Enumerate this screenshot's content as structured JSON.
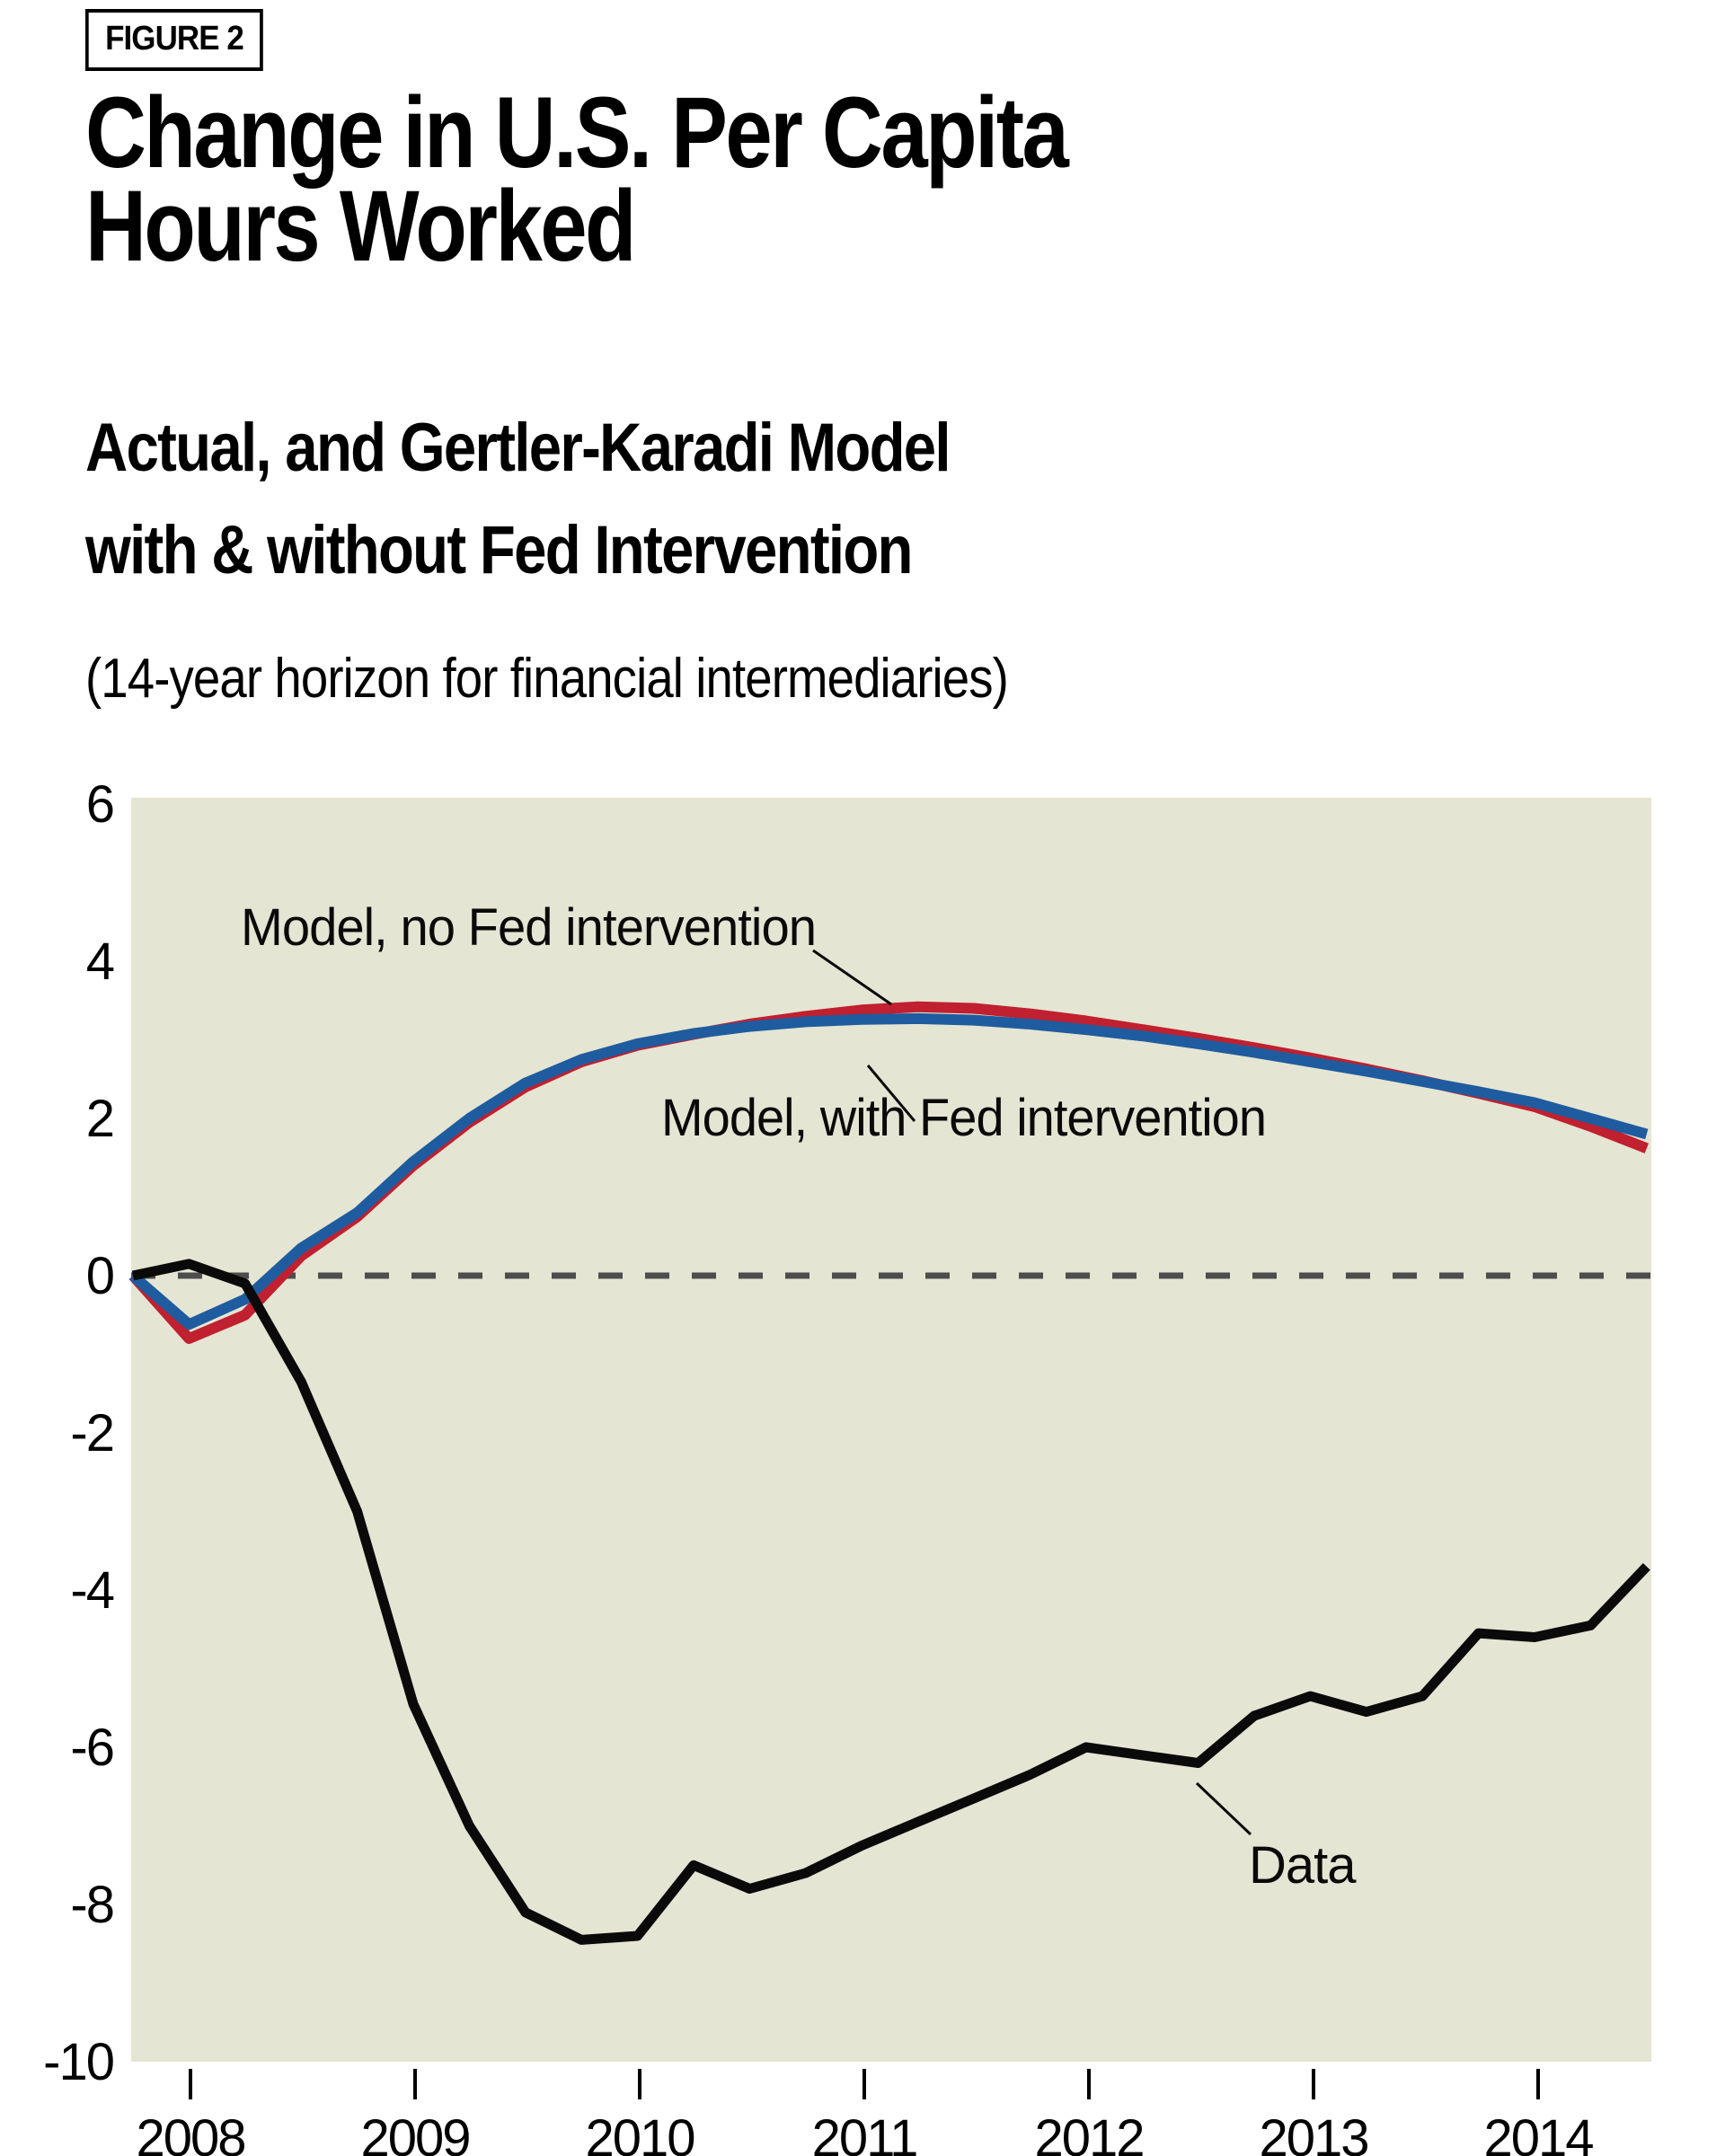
{
  "figure_tag": "FIGURE 2",
  "title": "Change in U.S. Per Capita\nHours Worked",
  "subtitle": "Actual, and Gertler-Karadi Model\nwith & without Fed Intervention",
  "subtitle_note": "(14-year horizon for financial intermediaries)",
  "colors": {
    "plot_bg": "#e5e5d3",
    "zero_line": "#4d4d4d",
    "red_series": "#c0202f",
    "blue_series": "#1f5c9f",
    "black_series": "#0a0a0a"
  },
  "chart_data": {
    "type": "line",
    "title": "Change in U.S. Per Capita Hours Worked",
    "xlabel": "",
    "ylabel": "",
    "frequency": "quarterly",
    "x_start_label": "2007Q4",
    "x_end_label": "2014Q3",
    "x_tick_labels": [
      "2008",
      "2009",
      "2010",
      "2011",
      "2012",
      "2013",
      "2014"
    ],
    "y_ticks": [
      6,
      4,
      2,
      0,
      -2,
      -4,
      -6,
      -8,
      -10
    ],
    "ylim": [
      -10,
      6
    ],
    "grid": "off",
    "zero_line_style": "dashed",
    "legend_position": "inline-annotations",
    "series": [
      {
        "name": "Model, no Fed intervention",
        "color": "#c0202f",
        "values": [
          0.0,
          -0.8,
          -0.5,
          0.25,
          0.75,
          1.4,
          1.95,
          2.4,
          2.72,
          2.93,
          3.07,
          3.2,
          3.3,
          3.38,
          3.42,
          3.4,
          3.33,
          3.24,
          3.13,
          3.02,
          2.9,
          2.77,
          2.63,
          2.48,
          2.32,
          2.15,
          1.9,
          1.62
        ]
      },
      {
        "name": "Model, with Fed intervention",
        "color": "#1f5c9f",
        "values": [
          0.0,
          -0.62,
          -0.3,
          0.35,
          0.8,
          1.45,
          2.0,
          2.45,
          2.75,
          2.95,
          3.08,
          3.17,
          3.23,
          3.26,
          3.27,
          3.25,
          3.2,
          3.13,
          3.05,
          2.95,
          2.84,
          2.72,
          2.6,
          2.47,
          2.34,
          2.2,
          2.0,
          1.8
        ]
      },
      {
        "name": "Data",
        "color": "#0a0a0a",
        "values": [
          0.0,
          0.15,
          -0.1,
          -1.35,
          -3.0,
          -5.45,
          -7.0,
          -8.1,
          -8.45,
          -8.4,
          -7.5,
          -7.8,
          -7.6,
          -7.25,
          -6.95,
          -6.65,
          -6.35,
          -6.0,
          -6.1,
          -6.2,
          -5.6,
          -5.35,
          -5.55,
          -5.35,
          -4.55,
          -4.6,
          -4.45,
          -3.7
        ]
      }
    ]
  }
}
